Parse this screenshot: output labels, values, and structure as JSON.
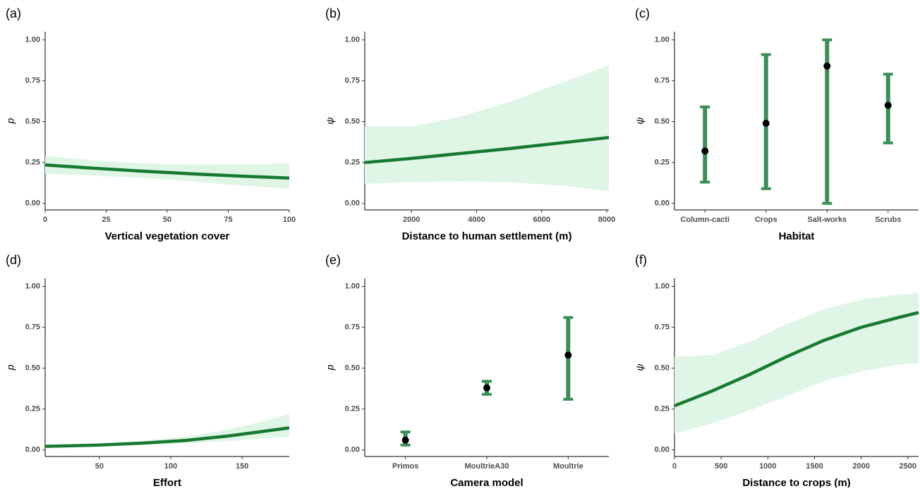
{
  "chart_data": [
    {
      "type": "line",
      "label": "(a)",
      "xlabel": "Vertical vegetation cover",
      "ylabel": "p",
      "x": [
        0,
        20,
        40,
        60,
        80,
        100
      ],
      "values": [
        0.235,
        0.215,
        0.197,
        0.181,
        0.167,
        0.155
      ],
      "lower": [
        0.18,
        0.17,
        0.155,
        0.135,
        0.11,
        0.09
      ],
      "upper": [
        0.29,
        0.262,
        0.245,
        0.238,
        0.24,
        0.245
      ],
      "color": "#177a30",
      "band_color": "#dff5e6",
      "xlim": [
        0,
        100
      ],
      "xticks": [
        0,
        25,
        50,
        75,
        100
      ],
      "ylim": [
        -0.04,
        1.05
      ],
      "yticks": [
        {
          "value": 0,
          "label": "0.00"
        },
        {
          "value": 0.25,
          "label": "0.25"
        },
        {
          "value": 0.5,
          "label": "0.50"
        },
        {
          "value": 0.75,
          "label": "0.75"
        },
        {
          "value": 1,
          "label": "1.00"
        }
      ]
    },
    {
      "type": "line",
      "label": "(b)",
      "xlabel": "Distance to human settlement (m)",
      "ylabel": "ψ",
      "x": [
        565,
        2000,
        3500,
        5000,
        6500,
        8065
      ],
      "values": [
        0.25,
        0.275,
        0.305,
        0.335,
        0.368,
        0.403
      ],
      "lower": [
        0.12,
        0.13,
        0.135,
        0.13,
        0.11,
        0.075
      ],
      "upper": [
        0.47,
        0.47,
        0.53,
        0.62,
        0.73,
        0.845
      ],
      "color": "#177a30",
      "band_color": "#dff5e6",
      "xlim": [
        565,
        8065
      ],
      "xticks": [
        2000,
        4000,
        6000,
        8000
      ],
      "ylim": [
        -0.04,
        1.05
      ],
      "yticks": [
        {
          "value": 0,
          "label": "0.00"
        },
        {
          "value": 0.25,
          "label": "0.25"
        },
        {
          "value": 0.5,
          "label": "0.50"
        },
        {
          "value": 0.75,
          "label": "0.75"
        },
        {
          "value": 1,
          "label": "1.00"
        }
      ]
    },
    {
      "type": "errorbar",
      "label": "(c)",
      "xlabel": "Habitat",
      "ylabel": "ψ",
      "categories": [
        "Column-cacti",
        "Crops",
        "Salt-works",
        "Scrubs"
      ],
      "values": [
        0.32,
        0.49,
        0.84,
        0.6
      ],
      "lower": [
        0.13,
        0.09,
        0.0,
        0.37
      ],
      "upper": [
        0.59,
        0.91,
        1.0,
        0.79
      ],
      "color": "#3a8f55",
      "ylim": [
        -0.04,
        1.05
      ],
      "yticks": [
        {
          "value": 0,
          "label": "0.00"
        },
        {
          "value": 0.25,
          "label": "0.25"
        },
        {
          "value": 0.5,
          "label": "0.50"
        },
        {
          "value": 0.75,
          "label": "0.75"
        },
        {
          "value": 1,
          "label": "1.00"
        }
      ]
    },
    {
      "type": "line",
      "label": "(d)",
      "xlabel": "Effort",
      "ylabel": "p",
      "x": [
        12,
        50,
        80,
        110,
        140,
        160,
        183
      ],
      "values": [
        0.022,
        0.03,
        0.042,
        0.058,
        0.085,
        0.108,
        0.135
      ],
      "lower": [
        0.015,
        0.022,
        0.03,
        0.04,
        0.055,
        0.068,
        0.08
      ],
      "upper": [
        0.03,
        0.04,
        0.055,
        0.08,
        0.125,
        0.165,
        0.22
      ],
      "color": "#177a30",
      "band_color": "#dff5e6",
      "xlim": [
        12,
        183
      ],
      "xticks": [
        50,
        100,
        150
      ],
      "ylim": [
        -0.04,
        1.05
      ],
      "yticks": [
        {
          "value": 0,
          "label": "0.00"
        },
        {
          "value": 0.25,
          "label": "0.25"
        },
        {
          "value": 0.5,
          "label": "0.50"
        },
        {
          "value": 0.75,
          "label": "0.75"
        },
        {
          "value": 1,
          "label": "1.00"
        }
      ]
    },
    {
      "type": "errorbar",
      "label": "(e)",
      "xlabel": "Camera model",
      "ylabel": "p",
      "categories": [
        "Primos",
        "MoultrieA30",
        "Moultrie"
      ],
      "values": [
        0.06,
        0.38,
        0.58
      ],
      "lower": [
        0.03,
        0.34,
        0.31
      ],
      "upper": [
        0.11,
        0.42,
        0.81
      ],
      "color": "#3a8f55",
      "ylim": [
        -0.04,
        1.05
      ],
      "yticks": [
        {
          "value": 0,
          "label": "0.00"
        },
        {
          "value": 0.25,
          "label": "0.25"
        },
        {
          "value": 0.5,
          "label": "0.50"
        },
        {
          "value": 0.75,
          "label": "0.75"
        },
        {
          "value": 1,
          "label": "1.00"
        }
      ]
    },
    {
      "type": "line",
      "label": "(f)",
      "xlabel": "Distance to crops (m)",
      "ylabel": "ψ",
      "x": [
        0,
        400,
        800,
        1200,
        1600,
        2000,
        2400,
        2615
      ],
      "values": [
        0.27,
        0.36,
        0.46,
        0.57,
        0.67,
        0.75,
        0.81,
        0.84
      ],
      "lower": [
        0.1,
        0.16,
        0.24,
        0.33,
        0.42,
        0.48,
        0.52,
        0.53
      ],
      "upper": [
        0.57,
        0.58,
        0.66,
        0.77,
        0.86,
        0.92,
        0.95,
        0.96
      ],
      "color": "#177a30",
      "band_color": "#dff5e6",
      "xlim": [
        0,
        2615
      ],
      "xticks": [
        0,
        500,
        1000,
        1500,
        2000,
        2500
      ],
      "ylim": [
        -0.04,
        1.05
      ],
      "yticks": [
        {
          "value": 0,
          "label": "0.00"
        },
        {
          "value": 0.25,
          "label": "0.25"
        },
        {
          "value": 0.5,
          "label": "0.50"
        },
        {
          "value": 0.75,
          "label": "0.75"
        },
        {
          "value": 1,
          "label": "1.00"
        }
      ]
    }
  ]
}
